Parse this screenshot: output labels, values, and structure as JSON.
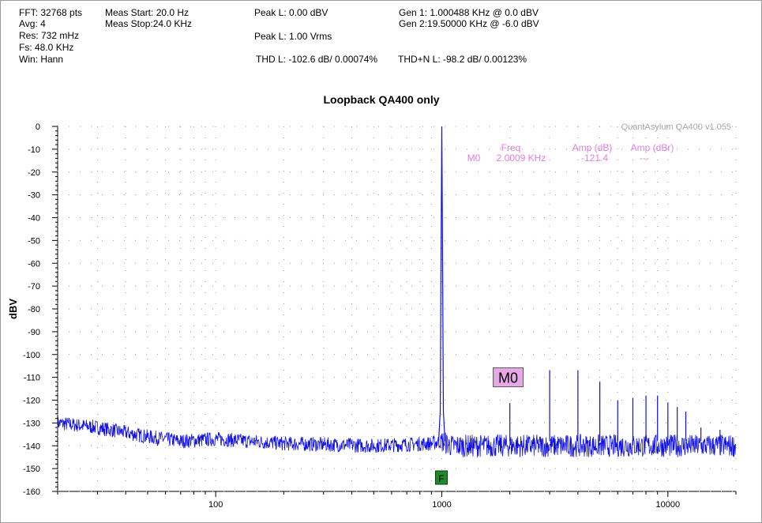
{
  "header": {
    "col1": [
      "FFT: 32768 pts",
      "Avg: 4",
      "Res: 732 mHz",
      "Fs: 48.0 KHz",
      "Win: Hann"
    ],
    "col2": [
      "Meas Start: 20.0 Hz",
      "Meas Stop:24.0 KHz"
    ],
    "peak_l_dbv": "Peak L: 0.00 dBV",
    "peak_l_vrms": "Peak L: 1.00 Vrms",
    "thd": "THD L: -102.6 dB/ 0.00074%",
    "thdn": "THD+N L: -98.2 dB/ 0.00123%",
    "gen1": "Gen 1: 1.000488 KHz @ 0.0  dBV",
    "gen2": "Gen 2:19.50000 KHz @ -6.0  dBV"
  },
  "chart_data": {
    "type": "line",
    "title": "Loopback QA400 only",
    "watermark": "QuantAsylum QA400 v1.055",
    "ylabel": "dBV",
    "xlabel": "",
    "xscale": "log",
    "xlim": [
      20,
      20000
    ],
    "ylim": [
      -160,
      0
    ],
    "yticks": [
      0,
      -10,
      -20,
      -30,
      -40,
      -50,
      -60,
      -70,
      -80,
      -90,
      -100,
      -110,
      -120,
      -130,
      -140,
      -150,
      -160
    ],
    "xticks": [
      100,
      1000,
      10000
    ],
    "grid": true,
    "series_color": "#1010e6",
    "series": [
      {
        "noise_floor": [
          [
            20,
            -130
          ],
          [
            30,
            -132
          ],
          [
            50,
            -136
          ],
          [
            70,
            -138
          ],
          [
            100,
            -137
          ],
          [
            200,
            -139
          ],
          [
            500,
            -140
          ],
          [
            900,
            -139
          ],
          [
            1000,
            -138
          ],
          [
            1100,
            -140
          ],
          [
            2000,
            -140
          ],
          [
            5000,
            -140
          ],
          [
            10000,
            -140
          ],
          [
            20000,
            -140
          ]
        ],
        "peaks": [
          [
            1000,
            0
          ],
          [
            2000,
            -121.4
          ],
          [
            3000,
            -107
          ],
          [
            4000,
            -107
          ],
          [
            5000,
            -112
          ],
          [
            6000,
            -120
          ],
          [
            7000,
            -119
          ],
          [
            8000,
            -118
          ],
          [
            9000,
            -118
          ],
          [
            10000,
            -121
          ],
          [
            11000,
            -123
          ],
          [
            12000,
            -125
          ],
          [
            14000,
            -132
          ],
          [
            17000,
            -133
          ]
        ]
      }
    ],
    "marker_table": {
      "headers": [
        "Freq",
        "Amp (dB)",
        "Amp (dBr)"
      ],
      "row": [
        "M0",
        "2.0009 KHz",
        "-121.4",
        "---"
      ],
      "color": "#e27de2"
    },
    "marker": {
      "label": "M0",
      "x": 2000,
      "y": -121.4,
      "label_x": 1800,
      "label_y": -110
    },
    "f_marker": {
      "label": "F",
      "x": 1000
    }
  }
}
